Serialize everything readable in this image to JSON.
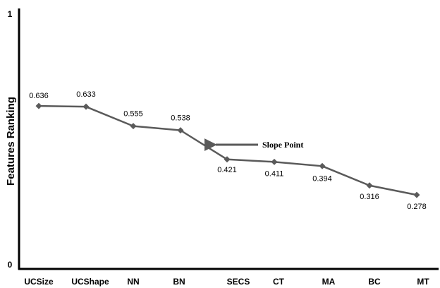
{
  "chart_data": {
    "type": "line",
    "title": "",
    "xlabel": "",
    "ylabel": "Features Ranking",
    "categories": [
      "UCSize",
      "UCShape",
      "NN",
      "BN",
      "SECS",
      "CT",
      "MA",
      "BC",
      "MT"
    ],
    "values": [
      0.636,
      0.633,
      0.555,
      0.538,
      0.421,
      0.411,
      0.394,
      0.316,
      0.278
    ],
    "data_labels": [
      "0.636",
      "0.633",
      "0.555",
      "0.538",
      "0.421",
      "0.411",
      "0.394",
      "0.316",
      "0.278"
    ],
    "ylim": [
      0,
      1
    ],
    "y_ticks": [
      "0",
      "1"
    ],
    "grid": false,
    "legend": "none",
    "annotation": {
      "text": "Slope Point",
      "points_to_between": [
        "BN",
        "SECS"
      ],
      "value": 0.48
    },
    "colors": {
      "line": "#5a5a5a",
      "marker": "#5a5a5a",
      "axis": "#000000"
    }
  }
}
